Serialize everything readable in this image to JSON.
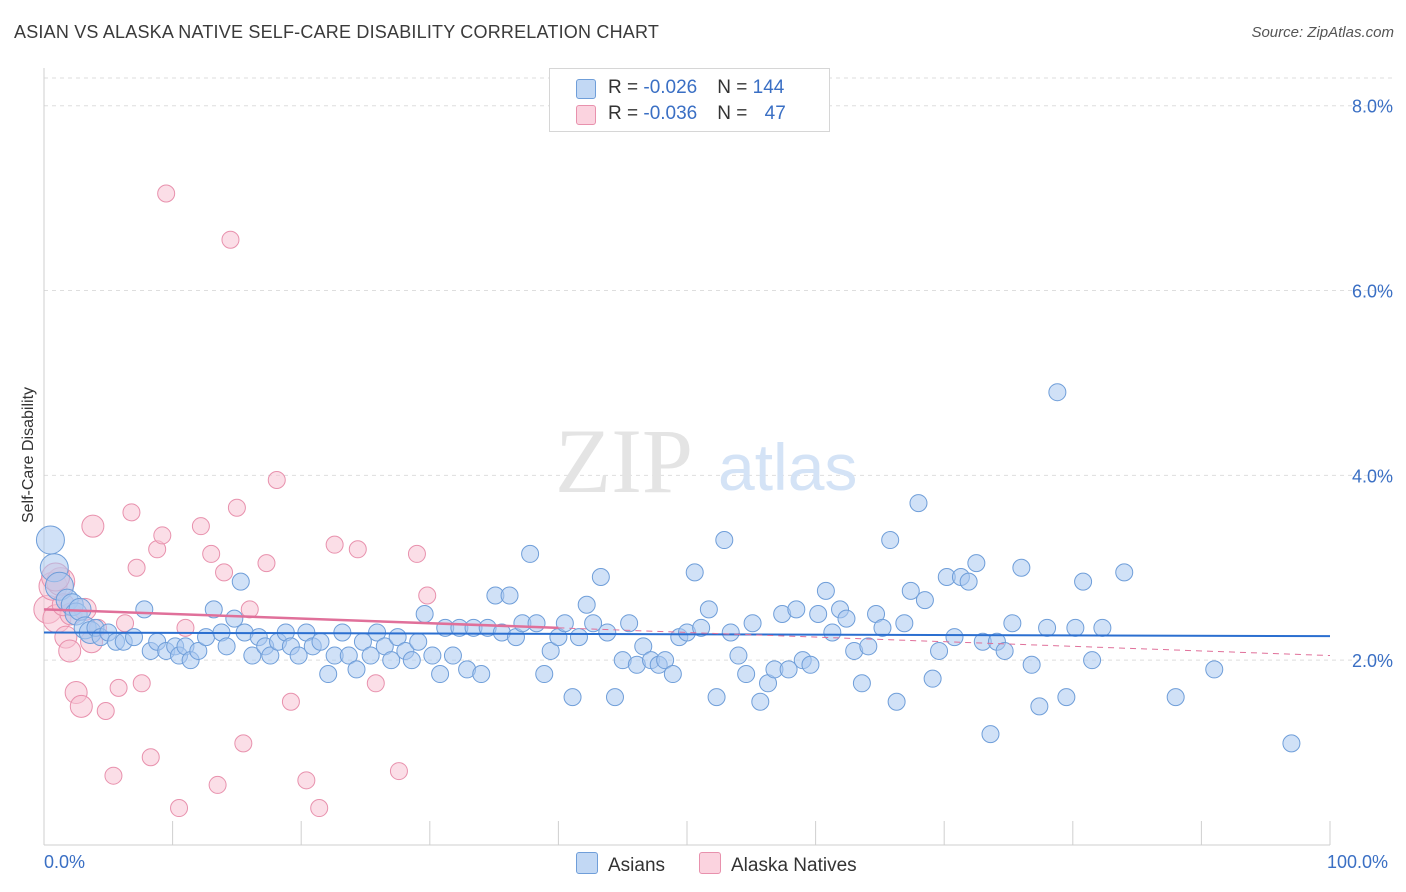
{
  "title": "ASIAN VS ALASKA NATIVE SELF-CARE DISABILITY CORRELATION CHART",
  "source": "Source: ZipAtlas.com",
  "watermark": {
    "zip": "ZIP",
    "atlas": "atlas"
  },
  "legend": {
    "asians": {
      "r_label": "R = ",
      "r_value": "-0.026",
      "n_label": "N = ",
      "n_value": "144"
    },
    "natives": {
      "r_label": "R = ",
      "r_value": "-0.036",
      "n_label": "N = ",
      "n_value": "47"
    }
  },
  "bottom_legend": {
    "asians": "Asians",
    "natives": "Alaska Natives"
  },
  "x_ticks": {
    "left": "0.0%",
    "right": "100.0%"
  },
  "colors": {
    "asians_fill": "#a9c8f0",
    "asians_stroke": "#6f9ed9",
    "asians_line": "#2b6fd0",
    "natives_fill": "#f7c3d3",
    "natives_stroke": "#e891ad",
    "natives_line": "#e0709a",
    "tick_text": "#3a6fc4",
    "grid": "#dedede"
  },
  "chart_data": {
    "type": "scatter",
    "title": "ASIAN VS ALASKA NATIVE SELF-CARE DISABILITY CORRELATION CHART",
    "xlabel": "",
    "ylabel": "Self-Care Disability",
    "xlim": [
      0,
      100
    ],
    "ylim": [
      0,
      8.3
    ],
    "y_ticks": [
      2.0,
      4.0,
      6.0,
      8.0
    ],
    "y_tick_labels": [
      "2.0%",
      "4.0%",
      "6.0%",
      "8.0%"
    ],
    "grid": true,
    "legend_position": "top-center",
    "series": [
      {
        "name": "Asians",
        "r": -0.026,
        "n": 144,
        "trend": {
          "x": [
            0,
            100
          ],
          "y": [
            2.3,
            2.26
          ]
        },
        "points": [
          [
            0.5,
            3.3
          ],
          [
            0.8,
            3.0
          ],
          [
            1.2,
            2.8
          ],
          [
            1.8,
            2.65
          ],
          [
            2.2,
            2.6
          ],
          [
            2.5,
            2.5
          ],
          [
            2.8,
            2.55
          ],
          [
            3.2,
            2.35
          ],
          [
            3.6,
            2.3
          ],
          [
            4,
            2.35
          ],
          [
            4.4,
            2.25
          ],
          [
            5,
            2.3
          ],
          [
            5.6,
            2.2
          ],
          [
            6.2,
            2.2
          ],
          [
            7,
            2.25
          ],
          [
            7.8,
            2.55
          ],
          [
            8.3,
            2.1
          ],
          [
            8.8,
            2.2
          ],
          [
            9.5,
            2.1
          ],
          [
            10.2,
            2.15
          ],
          [
            10.5,
            2.05
          ],
          [
            11,
            2.15
          ],
          [
            11.4,
            2.0
          ],
          [
            12,
            2.1
          ],
          [
            12.6,
            2.25
          ],
          [
            13.2,
            2.55
          ],
          [
            13.8,
            2.3
          ],
          [
            14.2,
            2.15
          ],
          [
            14.8,
            2.45
          ],
          [
            15.3,
            2.85
          ],
          [
            15.6,
            2.3
          ],
          [
            16.2,
            2.05
          ],
          [
            16.7,
            2.25
          ],
          [
            17.2,
            2.15
          ],
          [
            17.6,
            2.05
          ],
          [
            18.2,
            2.2
          ],
          [
            18.8,
            2.3
          ],
          [
            19.2,
            2.15
          ],
          [
            19.8,
            2.05
          ],
          [
            20.4,
            2.3
          ],
          [
            20.9,
            2.15
          ],
          [
            21.5,
            2.2
          ],
          [
            22.1,
            1.85
          ],
          [
            22.6,
            2.05
          ],
          [
            23.2,
            2.3
          ],
          [
            23.7,
            2.05
          ],
          [
            24.3,
            1.9
          ],
          [
            24.8,
            2.2
          ],
          [
            25.4,
            2.05
          ],
          [
            25.9,
            2.3
          ],
          [
            26.5,
            2.15
          ],
          [
            27.0,
            2.0
          ],
          [
            27.5,
            2.25
          ],
          [
            28.1,
            2.1
          ],
          [
            28.6,
            2.0
          ],
          [
            29.1,
            2.2
          ],
          [
            29.6,
            2.5
          ],
          [
            30.2,
            2.05
          ],
          [
            30.8,
            1.85
          ],
          [
            31.2,
            2.35
          ],
          [
            31.8,
            2.05
          ],
          [
            32.3,
            2.35
          ],
          [
            32.9,
            1.9
          ],
          [
            33.4,
            2.35
          ],
          [
            34.0,
            1.85
          ],
          [
            34.5,
            2.35
          ],
          [
            35.1,
            2.7
          ],
          [
            35.6,
            2.3
          ],
          [
            36.2,
            2.7
          ],
          [
            36.7,
            2.25
          ],
          [
            37.2,
            2.4
          ],
          [
            37.8,
            3.15
          ],
          [
            38.3,
            2.4
          ],
          [
            38.9,
            1.85
          ],
          [
            39.4,
            2.1
          ],
          [
            40.0,
            2.25
          ],
          [
            40.5,
            2.4
          ],
          [
            41.1,
            1.6
          ],
          [
            41.6,
            2.25
          ],
          [
            42.2,
            2.6
          ],
          [
            42.7,
            2.4
          ],
          [
            43.3,
            2.9
          ],
          [
            43.8,
            2.3
          ],
          [
            44.4,
            1.6
          ],
          [
            45.0,
            2.0
          ],
          [
            45.5,
            2.4
          ],
          [
            46.1,
            1.95
          ],
          [
            46.6,
            2.15
          ],
          [
            47.2,
            2.0
          ],
          [
            47.8,
            1.95
          ],
          [
            48.3,
            2.0
          ],
          [
            48.9,
            1.85
          ],
          [
            49.4,
            2.25
          ],
          [
            50.0,
            2.3
          ],
          [
            50.6,
            2.95
          ],
          [
            51.1,
            2.35
          ],
          [
            51.7,
            2.55
          ],
          [
            52.3,
            1.6
          ],
          [
            52.9,
            3.3
          ],
          [
            53.4,
            2.3
          ],
          [
            54.0,
            2.05
          ],
          [
            54.6,
            1.85
          ],
          [
            55.1,
            2.4
          ],
          [
            55.7,
            1.55
          ],
          [
            56.3,
            1.75
          ],
          [
            56.8,
            1.9
          ],
          [
            57.4,
            2.5
          ],
          [
            57.9,
            1.9
          ],
          [
            58.5,
            2.55
          ],
          [
            59.0,
            2.0
          ],
          [
            59.6,
            1.95
          ],
          [
            60.2,
            2.5
          ],
          [
            60.8,
            2.75
          ],
          [
            61.3,
            2.3
          ],
          [
            61.9,
            2.55
          ],
          [
            62.4,
            2.45
          ],
          [
            63.0,
            2.1
          ],
          [
            63.6,
            1.75
          ],
          [
            64.1,
            2.15
          ],
          [
            64.7,
            2.5
          ],
          [
            65.2,
            2.35
          ],
          [
            65.8,
            3.3
          ],
          [
            66.3,
            1.55
          ],
          [
            66.9,
            2.4
          ],
          [
            67.4,
            2.75
          ],
          [
            68.0,
            3.7
          ],
          [
            68.5,
            2.65
          ],
          [
            69.1,
            1.8
          ],
          [
            69.6,
            2.1
          ],
          [
            70.2,
            2.9
          ],
          [
            70.8,
            2.25
          ],
          [
            71.3,
            2.9
          ],
          [
            71.9,
            2.85
          ],
          [
            72.5,
            3.05
          ],
          [
            73.0,
            2.2
          ],
          [
            73.6,
            1.2
          ],
          [
            74.1,
            2.2
          ],
          [
            74.7,
            2.1
          ],
          [
            75.3,
            2.4
          ],
          [
            76.0,
            3.0
          ],
          [
            76.8,
            1.95
          ],
          [
            77.4,
            1.5
          ],
          [
            78.0,
            2.35
          ],
          [
            78.8,
            4.9
          ],
          [
            79.5,
            1.6
          ],
          [
            80.2,
            2.35
          ],
          [
            80.8,
            2.85
          ],
          [
            81.5,
            2.0
          ],
          [
            82.3,
            2.35
          ],
          [
            84.0,
            2.95
          ],
          [
            88.0,
            1.6
          ],
          [
            91.0,
            1.9
          ],
          [
            97.0,
            1.1
          ]
        ]
      },
      {
        "name": "Alaska Natives",
        "r": -0.036,
        "n": 47,
        "trend": {
          "x": [
            0,
            40
          ],
          "y": [
            2.55,
            2.35
          ]
        },
        "trend_extension": {
          "x": [
            40,
            100
          ],
          "y": [
            2.35,
            2.05
          ]
        },
        "points": [
          [
            0.3,
            2.55
          ],
          [
            0.7,
            2.8
          ],
          [
            1.0,
            2.45
          ],
          [
            1.3,
            2.85
          ],
          [
            1.7,
            2.25
          ],
          [
            2.1,
            2.5
          ],
          [
            2.5,
            1.65
          ],
          [
            3.2,
            2.55
          ],
          [
            3.7,
            2.2
          ],
          [
            4.2,
            2.35
          ],
          [
            4.8,
            1.45
          ],
          [
            5.4,
            0.75
          ],
          [
            5.8,
            1.7
          ],
          [
            6.3,
            2.4
          ],
          [
            6.8,
            3.6
          ],
          [
            7.2,
            3.0
          ],
          [
            7.6,
            1.75
          ],
          [
            8.3,
            0.95
          ],
          [
            8.8,
            3.2
          ],
          [
            9.2,
            3.35
          ],
          [
            9.5,
            7.05
          ],
          [
            10.5,
            0.4
          ],
          [
            11.0,
            2.35
          ],
          [
            12.2,
            3.45
          ],
          [
            13.0,
            3.15
          ],
          [
            13.5,
            0.65
          ],
          [
            14.0,
            2.95
          ],
          [
            14.5,
            6.55
          ],
          [
            15.0,
            3.65
          ],
          [
            15.5,
            1.1
          ],
          [
            16.0,
            2.55
          ],
          [
            17.3,
            3.05
          ],
          [
            18.1,
            3.95
          ],
          [
            19.2,
            1.55
          ],
          [
            20.4,
            0.7
          ],
          [
            21.4,
            0.4
          ],
          [
            22.6,
            3.25
          ],
          [
            24.4,
            3.2
          ],
          [
            25.8,
            1.75
          ],
          [
            27.6,
            0.8
          ],
          [
            29.0,
            3.15
          ],
          [
            29.8,
            2.7
          ],
          [
            2.9,
            1.5
          ],
          [
            3.8,
            3.45
          ],
          [
            1.5,
            2.6
          ],
          [
            2.0,
            2.1
          ],
          [
            0.9,
            2.9
          ]
        ]
      }
    ]
  }
}
